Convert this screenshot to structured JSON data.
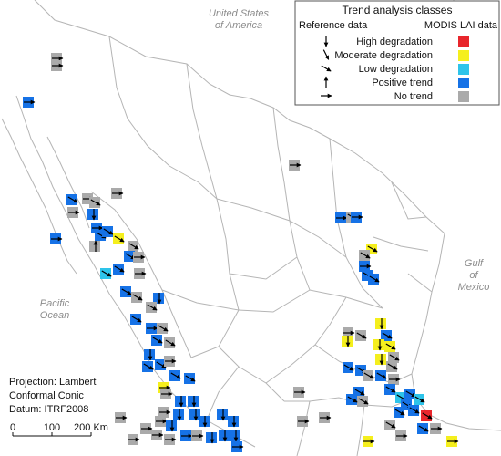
{
  "labels": {
    "usa": [
      "United States",
      "of America"
    ],
    "pacific": [
      "Pacific",
      "Ocean"
    ],
    "gulf": [
      "Gulf",
      "of",
      "Mexico"
    ]
  },
  "legend": {
    "title": "Trend analysis classes",
    "ref_header": "Reference data",
    "modis_header": "MODIS LAI data",
    "classes": [
      {
        "label": "High degradation",
        "color": "#e8262c",
        "arrow": "down"
      },
      {
        "label": "Moderate degradation",
        "color": "#f5ef1d",
        "arrow": "down-right-steep"
      },
      {
        "label": "Low degradation",
        "color": "#2ec4ea",
        "arrow": "down-right"
      },
      {
        "label": "Positive trend",
        "color": "#1672e6",
        "arrow": "up"
      },
      {
        "label": "No trend",
        "color": "#aaaaaa",
        "arrow": "right"
      }
    ]
  },
  "projection": [
    "Projection: Lambert",
    "Conformal Conic",
    "Datum: ITRF2008"
  ],
  "scalebar": {
    "ticks": [
      "0",
      "100",
      "200 Km"
    ]
  },
  "colors": {
    "land": "#ffffff",
    "water": "#ffffff",
    "boundary": "#b5b5b5"
  }
}
